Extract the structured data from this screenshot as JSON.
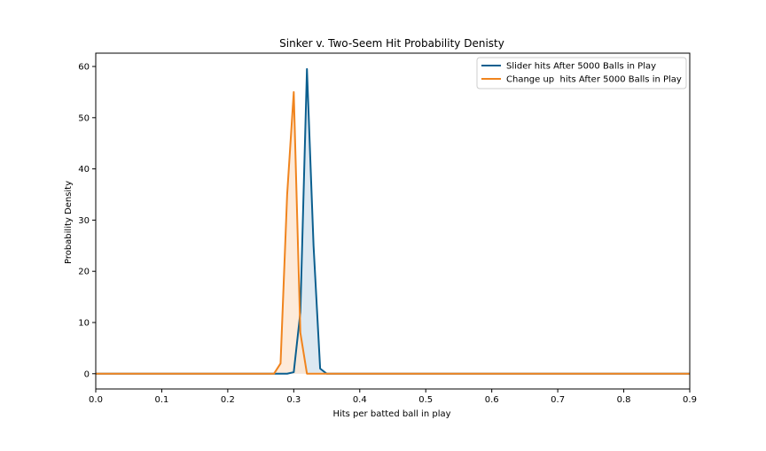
{
  "chart_data": {
    "type": "area",
    "title": "Sinker v. Two-Seem Hit Probability Denisty",
    "xlabel": "Hits per batted ball in play",
    "ylabel": "Probability Density",
    "xlim": [
      0.0,
      0.9
    ],
    "ylim": [
      -2.98,
      62.6
    ],
    "xticks": [
      0.0,
      0.1,
      0.2,
      0.3,
      0.4,
      0.5,
      0.6,
      0.7,
      0.8,
      0.9
    ],
    "xtick_labels": [
      "0.0",
      "0.1",
      "0.2",
      "0.3",
      "0.4",
      "0.5",
      "0.6",
      "0.7",
      "0.8",
      "0.9"
    ],
    "yticks": [
      0,
      10,
      20,
      30,
      40,
      50,
      60
    ],
    "ytick_labels": [
      "0",
      "10",
      "20",
      "30",
      "40",
      "50",
      "60"
    ],
    "grid": false,
    "legend_position": "top-right",
    "series": [
      {
        "name": "Slider hits After 5000 Balls in Play",
        "color": "#0b5f8f",
        "fill": "#d6e4ee",
        "x": [
          0.0,
          0.29,
          0.3,
          0.31,
          0.32,
          0.33,
          0.34,
          0.35,
          0.9
        ],
        "y": [
          0,
          0,
          0.3,
          12,
          59.5,
          25,
          1,
          0,
          0
        ]
      },
      {
        "name": "Change up  hits After 5000 Balls in Play",
        "color": "#f0841e",
        "fill": "#fde6d2",
        "x": [
          0.0,
          0.27,
          0.28,
          0.29,
          0.3,
          0.31,
          0.32,
          0.33,
          0.9
        ],
        "y": [
          0,
          0,
          2,
          35,
          55,
          8,
          0,
          0,
          0
        ]
      }
    ]
  }
}
